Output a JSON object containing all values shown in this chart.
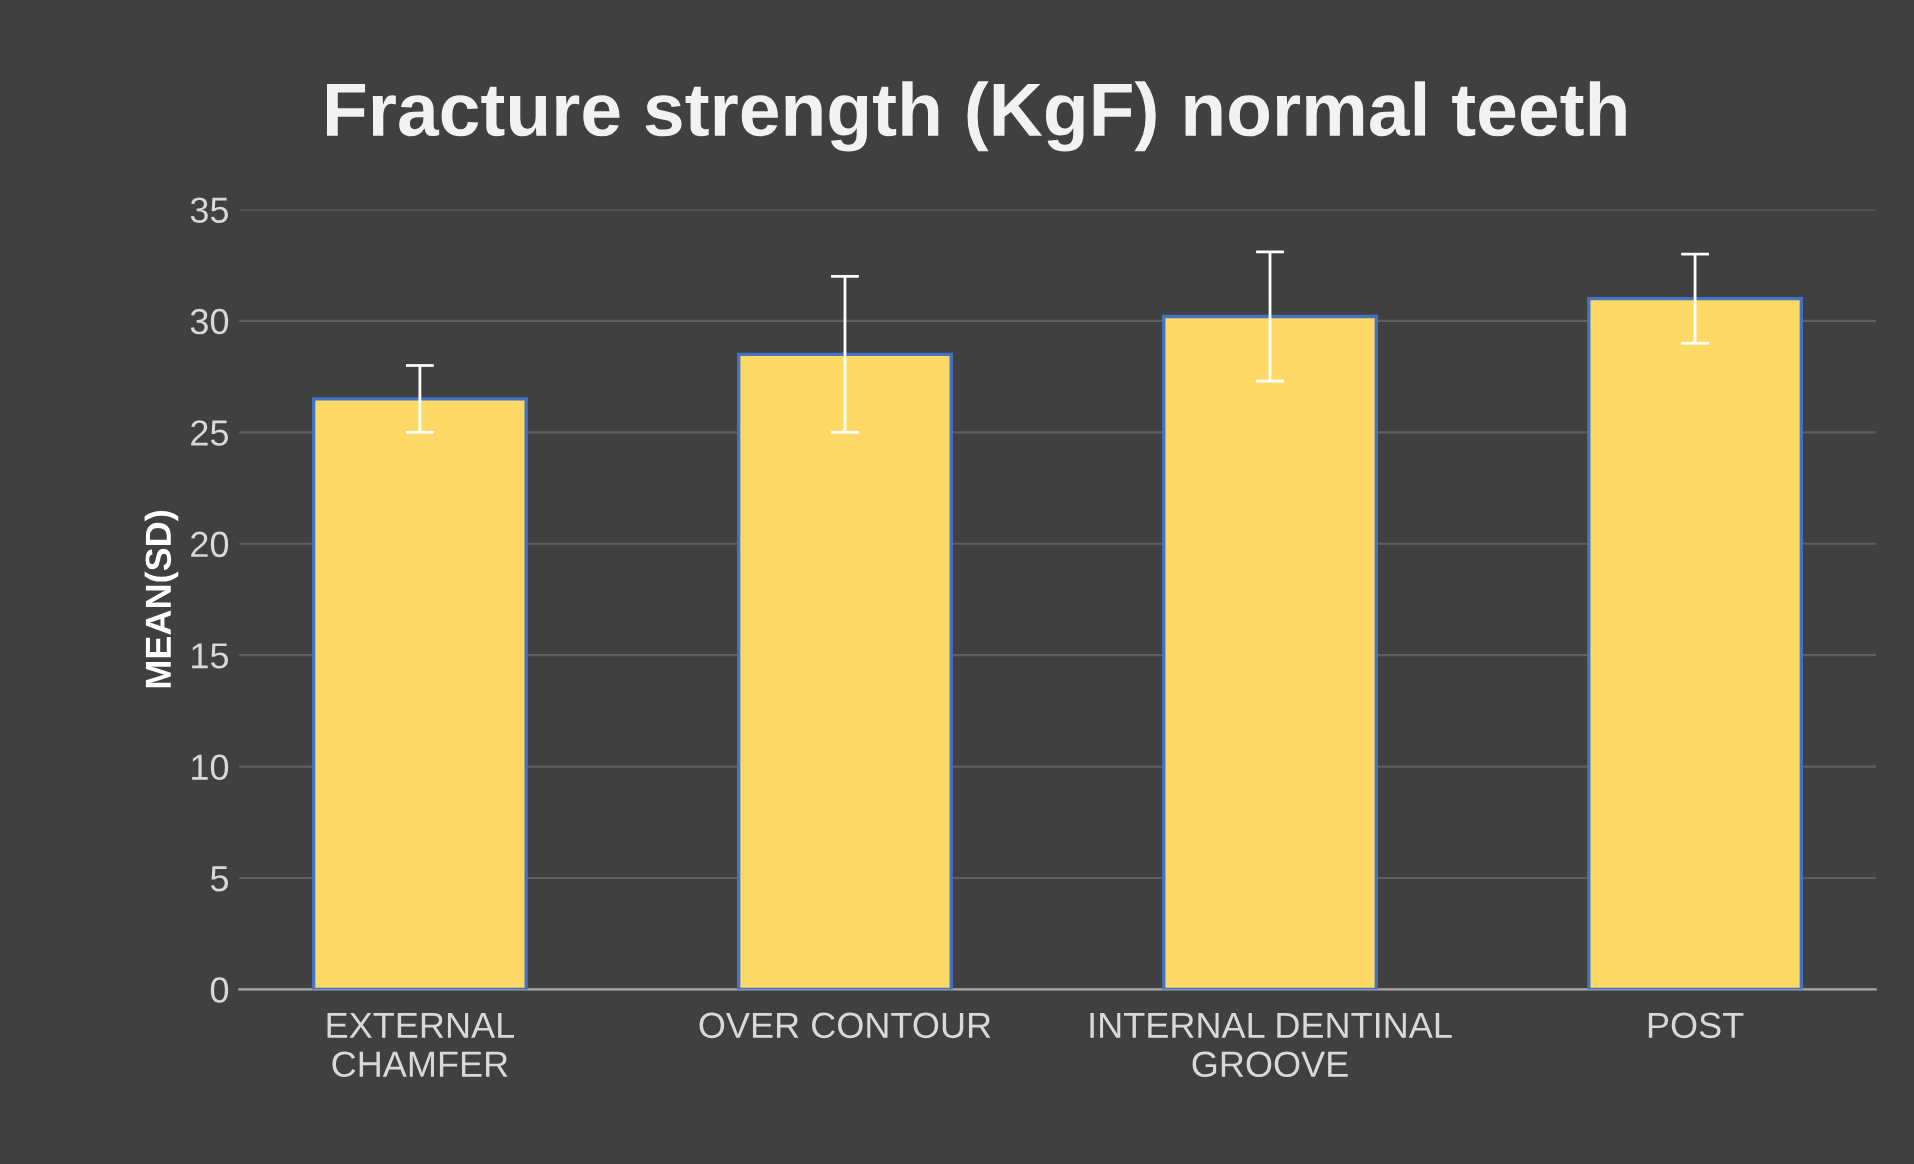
{
  "chart_data": {
    "type": "bar",
    "title": "Fracture strength (KgF) normal teeth",
    "ylabel": "MEAN(SD)",
    "categories": [
      "EXTERNAL\nCHAMFER",
      "OVER CONTOUR",
      "INTERNAL DENTINAL\nGROOVE",
      "POST"
    ],
    "values": [
      26.5,
      28.5,
      30.2,
      31.0
    ],
    "errors": [
      1.5,
      3.5,
      2.9,
      2.0
    ],
    "color": "#ffd966",
    "ylim": [
      0,
      35
    ],
    "yticks": [
      0,
      5,
      10,
      15,
      20,
      25,
      30,
      35
    ],
    "grid": "y"
  }
}
